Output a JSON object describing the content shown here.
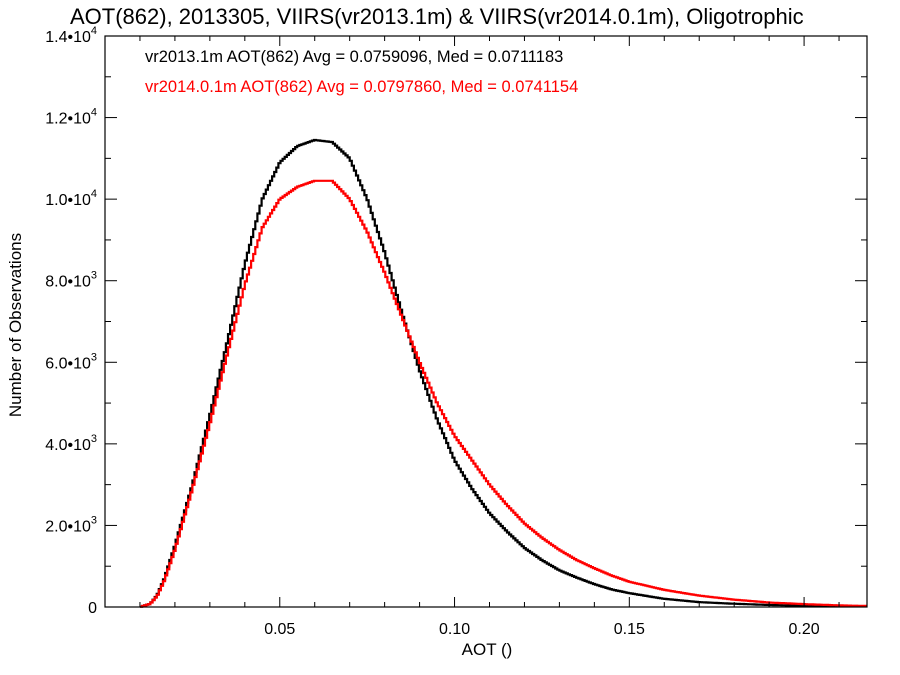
{
  "chart_data": {
    "type": "line",
    "title": "AOT(862), 2013305, VIIRS(vr2013.1m) & VIIRS(vr2014.0.1m), Oligotrophic",
    "xlabel": "AOT ()",
    "ylabel": "Number of Observations",
    "xlim": [
      0.0,
      0.218
    ],
    "ylim": [
      0,
      14000
    ],
    "x_ticks": [
      0.05,
      0.1,
      0.15,
      0.2
    ],
    "x_tick_labels": [
      "0.05",
      "0.10",
      "0.15",
      "0.20"
    ],
    "y_ticks": [
      {
        "value": 0,
        "mantissa": "0",
        "exp": ""
      },
      {
        "value": 2000,
        "mantissa": "2.0•10",
        "exp": "3"
      },
      {
        "value": 4000,
        "mantissa": "4.0•10",
        "exp": "3"
      },
      {
        "value": 6000,
        "mantissa": "6.0•10",
        "exp": "3"
      },
      {
        "value": 8000,
        "mantissa": "8.0•10",
        "exp": "3"
      },
      {
        "value": 10000,
        "mantissa": "1.0•10",
        "exp": "4"
      },
      {
        "value": 12000,
        "mantissa": "1.2•10",
        "exp": "4"
      },
      {
        "value": 14000,
        "mantissa": "1.4•10",
        "exp": "4"
      }
    ],
    "grid": false,
    "legend": "top-left",
    "annotations": [
      {
        "text": "vr2013.1m AOT(862) Avg = 0.0759096, Med = 0.0711183",
        "color": "#000000"
      },
      {
        "text": "vr2014.0.1m AOT(862) Avg = 0.0797860, Med = 0.0741154",
        "color": "#ff0000"
      }
    ],
    "series": [
      {
        "color": "#000000",
        "x": [
          0.01,
          0.013,
          0.015,
          0.017,
          0.02,
          0.025,
          0.03,
          0.035,
          0.04,
          0.045,
          0.05,
          0.055,
          0.06,
          0.065,
          0.07,
          0.075,
          0.08,
          0.085,
          0.09,
          0.095,
          0.1,
          0.105,
          0.11,
          0.115,
          0.12,
          0.125,
          0.13,
          0.135,
          0.14,
          0.145,
          0.15,
          0.16,
          0.17,
          0.18,
          0.19,
          0.2,
          0.21,
          0.218
        ],
        "values": [
          0,
          80,
          300,
          700,
          1500,
          3000,
          4700,
          6500,
          8400,
          10000,
          10900,
          11300,
          11450,
          11400,
          11000,
          10000,
          8700,
          7200,
          5800,
          4600,
          3600,
          2900,
          2300,
          1850,
          1450,
          1150,
          900,
          720,
          560,
          430,
          340,
          200,
          120,
          80,
          50,
          30,
          20,
          15
        ]
      },
      {
        "color": "#ff0000",
        "x": [
          0.01,
          0.013,
          0.015,
          0.017,
          0.02,
          0.025,
          0.03,
          0.035,
          0.04,
          0.045,
          0.05,
          0.055,
          0.06,
          0.065,
          0.07,
          0.075,
          0.08,
          0.085,
          0.09,
          0.095,
          0.1,
          0.105,
          0.11,
          0.115,
          0.12,
          0.125,
          0.13,
          0.135,
          0.14,
          0.145,
          0.15,
          0.16,
          0.17,
          0.18,
          0.19,
          0.2,
          0.21,
          0.218
        ],
        "values": [
          0,
          80,
          280,
          650,
          1400,
          2900,
          4500,
          6200,
          7900,
          9300,
          10000,
          10300,
          10450,
          10450,
          10000,
          9200,
          8200,
          7100,
          6000,
          5000,
          4200,
          3600,
          3000,
          2500,
          2050,
          1700,
          1400,
          1150,
          950,
          770,
          620,
          420,
          280,
          180,
          110,
          70,
          40,
          25
        ]
      }
    ]
  }
}
